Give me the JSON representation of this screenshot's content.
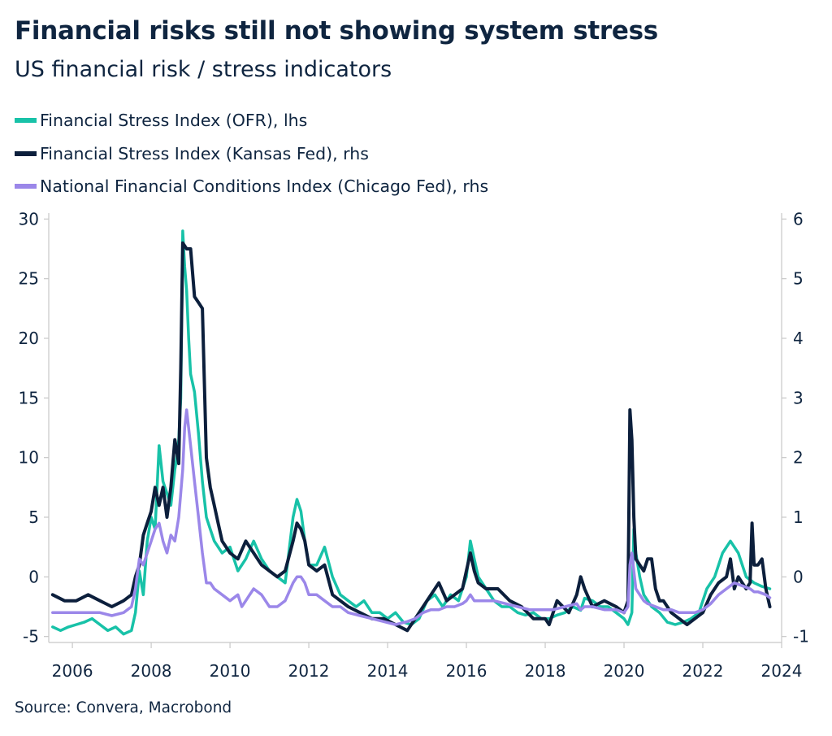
{
  "header": {
    "title": "Financial risks still not showing system stress",
    "subtitle": "US financial risk / stress indicators"
  },
  "footer": {
    "source": "Source: Convera, Macrobond"
  },
  "colors": {
    "ofr": "#18c2a8",
    "kansas": "#0c1f3c",
    "chicago": "#9b87e9",
    "axis": "#c8c8c8",
    "text": "#0f2540"
  },
  "chart_data": {
    "type": "line",
    "title": "Financial risks still not showing system stress",
    "subtitle": "US financial risk / stress indicators",
    "xlabel": "",
    "ylabel_left": "",
    "ylabel_right": "",
    "xlim": [
      2005.4,
      2024.0
    ],
    "x_ticks": [
      2006,
      2008,
      2010,
      2012,
      2014,
      2016,
      2018,
      2020,
      2022,
      2024
    ],
    "x_tick_labels": [
      "2006",
      "2008",
      "2010",
      "2012",
      "2014",
      "2016",
      "2018",
      "2020",
      "2022",
      "2024"
    ],
    "ylim_left": [
      -5.5,
      30.5
    ],
    "y_ticks_left": [
      -5,
      0,
      5,
      10,
      15,
      20,
      25,
      30
    ],
    "y_tick_labels_left": [
      "-5",
      "0",
      "5",
      "10",
      "15",
      "20",
      "25",
      "30"
    ],
    "ylim_right": [
      -1.1,
      6.1
    ],
    "y_ticks_right": [
      -1,
      0,
      1,
      2,
      3,
      4,
      5,
      6
    ],
    "y_tick_labels_right": [
      "-1",
      "0",
      "1",
      "2",
      "3",
      "4",
      "5",
      "6"
    ],
    "grid": false,
    "series": [
      {
        "name": "Financial Stress Index (OFR), lhs",
        "axis": "left",
        "color": "#18c2a8",
        "x": [
          2005.5,
          2005.7,
          2005.9,
          2006.1,
          2006.3,
          2006.5,
          2006.7,
          2006.9,
          2007.1,
          2007.3,
          2007.5,
          2007.6,
          2007.7,
          2007.8,
          2007.9,
          2008.0,
          2008.1,
          2008.2,
          2008.3,
          2008.4,
          2008.5,
          2008.6,
          2008.65,
          2008.7,
          2008.75,
          2008.8,
          2008.85,
          2008.9,
          2008.95,
          2009.0,
          2009.1,
          2009.2,
          2009.3,
          2009.4,
          2009.5,
          2009.6,
          2009.8,
          2010.0,
          2010.2,
          2010.4,
          2010.6,
          2010.8,
          2011.0,
          2011.2,
          2011.4,
          2011.6,
          2011.7,
          2011.8,
          2011.9,
          2012.0,
          2012.2,
          2012.4,
          2012.6,
          2012.8,
          2013.0,
          2013.2,
          2013.4,
          2013.6,
          2013.8,
          2014.0,
          2014.2,
          2014.4,
          2014.6,
          2014.8,
          2015.0,
          2015.2,
          2015.4,
          2015.6,
          2015.8,
          2016.0,
          2016.1,
          2016.2,
          2016.3,
          2016.5,
          2016.7,
          2016.9,
          2017.1,
          2017.3,
          2017.5,
          2017.7,
          2017.9,
          2018.1,
          2018.3,
          2018.5,
          2018.7,
          2018.9,
          2019.0,
          2019.2,
          2019.4,
          2019.6,
          2019.8,
          2020.0,
          2020.1,
          2020.2,
          2020.25,
          2020.3,
          2020.4,
          2020.5,
          2020.7,
          2020.9,
          2021.1,
          2021.3,
          2021.5,
          2021.7,
          2021.9,
          2022.1,
          2022.3,
          2022.5,
          2022.7,
          2022.9,
          2023.1,
          2023.3,
          2023.5,
          2023.7
        ],
        "values": [
          -4.2,
          -4.5,
          -4.2,
          -4.0,
          -3.8,
          -3.5,
          -4.0,
          -4.5,
          -4.2,
          -4.8,
          -4.5,
          -3.0,
          0.5,
          -1.5,
          3.0,
          5.0,
          4.0,
          11.0,
          8.0,
          7.0,
          6.0,
          9.0,
          10.0,
          11.5,
          15.0,
          29.0,
          26.0,
          24.0,
          20.0,
          17.0,
          15.5,
          12.0,
          8.0,
          5.0,
          4.0,
          3.0,
          2.0,
          2.5,
          0.5,
          1.5,
          3.0,
          1.5,
          0.5,
          0.0,
          -0.5,
          5.0,
          6.5,
          5.5,
          3.0,
          1.0,
          1.0,
          2.5,
          0.0,
          -1.5,
          -2.0,
          -2.5,
          -2.0,
          -3.0,
          -3.0,
          -3.5,
          -3.0,
          -3.8,
          -4.0,
          -3.5,
          -2.0,
          -1.5,
          -2.5,
          -1.5,
          -2.0,
          0.0,
          3.0,
          1.5,
          0.0,
          -1.0,
          -2.0,
          -2.5,
          -2.5,
          -3.0,
          -3.2,
          -3.0,
          -3.5,
          -3.5,
          -3.2,
          -3.0,
          -2.5,
          -2.8,
          -1.8,
          -2.0,
          -2.5,
          -2.5,
          -3.0,
          -3.5,
          -4.0,
          -3.0,
          4.0,
          2.0,
          0.0,
          -1.5,
          -2.5,
          -3.0,
          -3.8,
          -4.0,
          -3.8,
          -3.5,
          -3.0,
          -1.0,
          0.0,
          2.0,
          3.0,
          2.0,
          0.0,
          -0.5,
          -0.8,
          -1.0
        ]
      },
      {
        "name": "Financial Stress Index (Kansas Fed), rhs",
        "axis": "right",
        "color": "#0c1f3c",
        "x": [
          2005.5,
          2005.8,
          2006.1,
          2006.4,
          2006.7,
          2007.0,
          2007.3,
          2007.5,
          2007.6,
          2007.7,
          2007.8,
          2007.9,
          2008.0,
          2008.1,
          2008.2,
          2008.3,
          2008.4,
          2008.5,
          2008.6,
          2008.7,
          2008.75,
          2008.8,
          2008.9,
          2009.0,
          2009.1,
          2009.2,
          2009.3,
          2009.4,
          2009.5,
          2009.6,
          2009.7,
          2009.8,
          2010.0,
          2010.2,
          2010.4,
          2010.6,
          2010.8,
          2011.0,
          2011.2,
          2011.4,
          2011.6,
          2011.7,
          2011.8,
          2011.9,
          2012.0,
          2012.2,
          2012.4,
          2012.6,
          2012.8,
          2013.0,
          2013.3,
          2013.6,
          2013.9,
          2014.2,
          2014.5,
          2014.7,
          2014.9,
          2015.1,
          2015.3,
          2015.5,
          2015.7,
          2015.9,
          2016.0,
          2016.1,
          2016.2,
          2016.3,
          2016.5,
          2016.8,
          2017.1,
          2017.4,
          2017.7,
          2018.0,
          2018.1,
          2018.3,
          2018.6,
          2018.8,
          2018.9,
          2019.0,
          2019.2,
          2019.5,
          2019.8,
          2020.0,
          2020.1,
          2020.15,
          2020.2,
          2020.25,
          2020.3,
          2020.4,
          2020.5,
          2020.6,
          2020.7,
          2020.8,
          2020.9,
          2021.0,
          2021.2,
          2021.4,
          2021.6,
          2021.8,
          2022.0,
          2022.2,
          2022.4,
          2022.6,
          2022.7,
          2022.8,
          2022.9,
          2023.0,
          2023.1,
          2023.2,
          2023.25,
          2023.3,
          2023.4,
          2023.5,
          2023.6,
          2023.7
        ],
        "values": [
          -0.3,
          -0.4,
          -0.4,
          -0.3,
          -0.4,
          -0.5,
          -0.4,
          -0.3,
          0.0,
          0.2,
          0.7,
          0.9,
          1.1,
          1.5,
          1.2,
          1.5,
          1.0,
          1.5,
          2.3,
          1.9,
          3.5,
          5.6,
          5.5,
          5.5,
          4.7,
          4.6,
          4.5,
          2.0,
          1.5,
          1.2,
          0.9,
          0.6,
          0.4,
          0.3,
          0.6,
          0.4,
          0.2,
          0.1,
          0.0,
          0.1,
          0.6,
          0.9,
          0.8,
          0.6,
          0.2,
          0.1,
          0.2,
          -0.3,
          -0.4,
          -0.5,
          -0.6,
          -0.7,
          -0.7,
          -0.8,
          -0.9,
          -0.7,
          -0.5,
          -0.3,
          -0.1,
          -0.4,
          -0.3,
          -0.2,
          0.1,
          0.4,
          0.1,
          -0.1,
          -0.2,
          -0.2,
          -0.4,
          -0.5,
          -0.7,
          -0.7,
          -0.8,
          -0.4,
          -0.6,
          -0.3,
          0.0,
          -0.2,
          -0.5,
          -0.4,
          -0.5,
          -0.6,
          -0.4,
          2.8,
          2.3,
          1.0,
          0.3,
          0.2,
          0.1,
          0.3,
          0.3,
          -0.2,
          -0.4,
          -0.4,
          -0.6,
          -0.7,
          -0.8,
          -0.7,
          -0.6,
          -0.3,
          -0.1,
          0.0,
          0.3,
          -0.2,
          0.0,
          -0.1,
          -0.2,
          -0.1,
          0.9,
          0.2,
          0.2,
          0.3,
          -0.2,
          -0.5
        ]
      },
      {
        "name": "National Financial Conditions Index (Chicago Fed), rhs",
        "axis": "right",
        "color": "#9b87e9",
        "x": [
          2005.5,
          2005.8,
          2006.1,
          2006.4,
          2006.7,
          2007.0,
          2007.3,
          2007.5,
          2007.6,
          2007.7,
          2007.8,
          2007.9,
          2008.0,
          2008.1,
          2008.2,
          2008.3,
          2008.4,
          2008.5,
          2008.6,
          2008.7,
          2008.8,
          2008.85,
          2008.9,
          2009.0,
          2009.1,
          2009.2,
          2009.3,
          2009.4,
          2009.5,
          2009.6,
          2009.8,
          2010.0,
          2010.2,
          2010.3,
          2010.4,
          2010.5,
          2010.6,
          2010.8,
          2011.0,
          2011.2,
          2011.4,
          2011.6,
          2011.7,
          2011.8,
          2011.9,
          2012.0,
          2012.2,
          2012.4,
          2012.6,
          2012.8,
          2013.0,
          2013.3,
          2013.6,
          2013.9,
          2014.2,
          2014.5,
          2014.7,
          2014.9,
          2015.1,
          2015.3,
          2015.5,
          2015.7,
          2015.9,
          2016.0,
          2016.1,
          2016.2,
          2016.4,
          2016.7,
          2017.0,
          2017.3,
          2017.6,
          2017.9,
          2018.2,
          2018.5,
          2018.8,
          2018.9,
          2019.0,
          2019.2,
          2019.5,
          2019.8,
          2020.0,
          2020.1,
          2020.15,
          2020.2,
          2020.25,
          2020.3,
          2020.4,
          2020.5,
          2020.6,
          2020.8,
          2021.0,
          2021.2,
          2021.4,
          2021.6,
          2021.8,
          2022.0,
          2022.2,
          2022.4,
          2022.6,
          2022.8,
          2023.0,
          2023.2,
          2023.3,
          2023.4,
          2023.6,
          2023.7
        ],
        "values": [
          -0.6,
          -0.6,
          -0.6,
          -0.6,
          -0.6,
          -0.65,
          -0.6,
          -0.5,
          -0.2,
          0.3,
          0.2,
          0.4,
          0.6,
          0.8,
          0.9,
          0.6,
          0.4,
          0.7,
          0.6,
          1.0,
          1.8,
          2.5,
          2.8,
          2.2,
          1.6,
          1.0,
          0.4,
          -0.1,
          -0.1,
          -0.2,
          -0.3,
          -0.4,
          -0.3,
          -0.5,
          -0.4,
          -0.3,
          -0.2,
          -0.3,
          -0.5,
          -0.5,
          -0.4,
          -0.1,
          0.0,
          0.0,
          -0.1,
          -0.3,
          -0.3,
          -0.4,
          -0.5,
          -0.5,
          -0.6,
          -0.65,
          -0.7,
          -0.75,
          -0.8,
          -0.75,
          -0.7,
          -0.6,
          -0.55,
          -0.55,
          -0.5,
          -0.5,
          -0.45,
          -0.4,
          -0.3,
          -0.4,
          -0.4,
          -0.4,
          -0.45,
          -0.5,
          -0.55,
          -0.55,
          -0.55,
          -0.5,
          -0.45,
          -0.55,
          -0.5,
          -0.5,
          -0.55,
          -0.55,
          -0.6,
          -0.5,
          0.2,
          0.4,
          0.1,
          -0.2,
          -0.3,
          -0.4,
          -0.45,
          -0.5,
          -0.55,
          -0.55,
          -0.6,
          -0.6,
          -0.6,
          -0.55,
          -0.45,
          -0.3,
          -0.2,
          -0.1,
          -0.15,
          -0.2,
          -0.25,
          -0.25,
          -0.3,
          -0.35
        ]
      }
    ]
  }
}
